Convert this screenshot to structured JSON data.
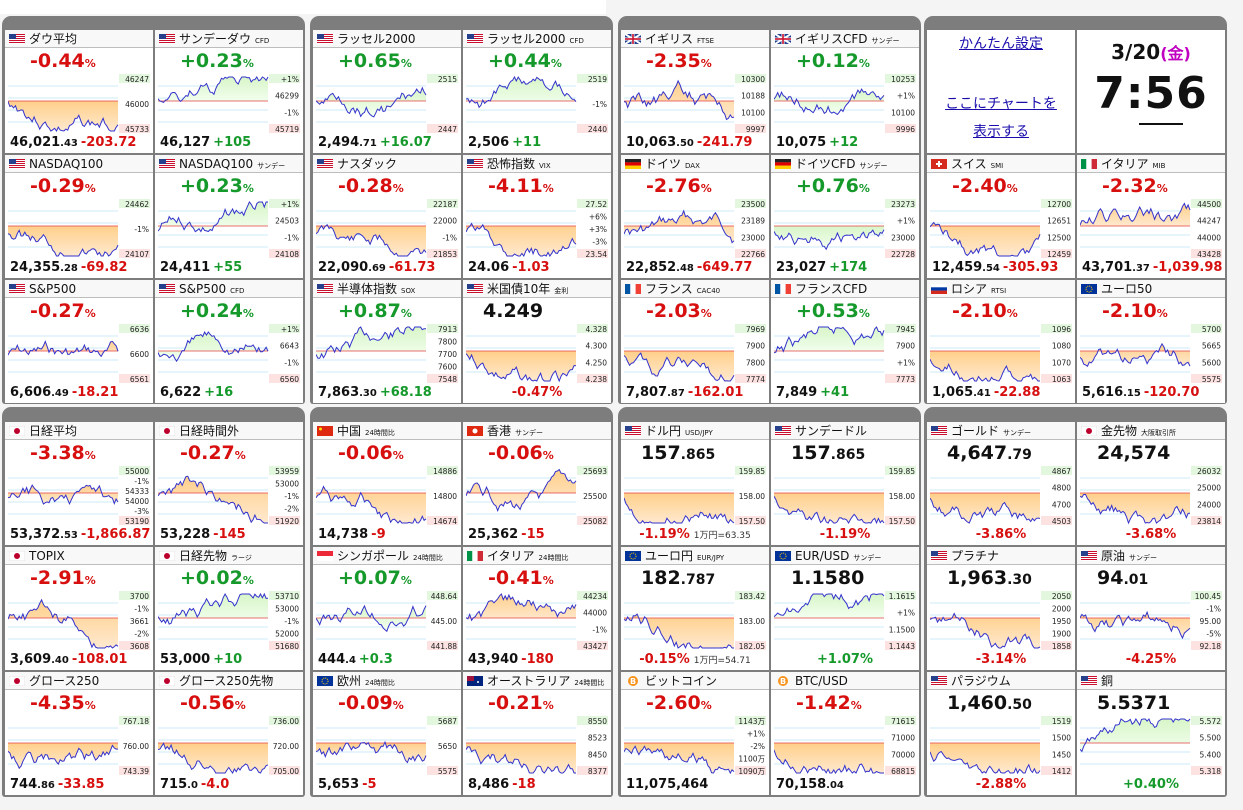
{
  "panel": {
    "settings_link": "かんたん設定",
    "chart_link_line1": "ここにチャートを",
    "chart_link_line2": "表示する",
    "date": "3/20",
    "weekday": "金",
    "time": "7:56"
  },
  "colors": {
    "up": "#15992b",
    "down": "#d70f0f",
    "group_bg": "#7d7d7d",
    "line": "#3333cc"
  },
  "tiles": [
    {
      "name": "ダウ平均",
      "sub": "",
      "flag": "us",
      "headline": "-0.44",
      "unit": "%",
      "price": "46,021",
      "price_dec": ".43",
      "change": "-203.72",
      "ticks": [
        "46247",
        "46000",
        "45733"
      ]
    },
    {
      "name": "サンデーダウ",
      "sub": "CFD",
      "flag": "us",
      "headline": "+0.23",
      "unit": "%",
      "price": "46,127",
      "price_dec": "",
      "change": "+105",
      "ticks": [
        "+1%",
        "46299",
        "-1%",
        "45719"
      ]
    },
    {
      "name": "ナスダック100",
      "sub": "",
      "flag": "us",
      "headline": "-0.29",
      "unit": "%",
      "price": "24,355",
      "price_dec": ".28",
      "change": "-69.82",
      "ticks": [
        "24462",
        "-1%",
        "24107"
      ],
      "display_name": "NASDAQ100"
    },
    {
      "name": "NASDAQ100",
      "sub": "サンデー",
      "flag": "us",
      "headline": "+0.23",
      "unit": "%",
      "price": "24,411",
      "price_dec": "",
      "change": "+55",
      "ticks": [
        "+1%",
        "24503",
        "-1%",
        "24108"
      ]
    },
    {
      "name": "S&P500",
      "sub": "",
      "flag": "us",
      "headline": "-0.27",
      "unit": "%",
      "price": "6,606",
      "price_dec": ".49",
      "change": "-18.21",
      "ticks": [
        "6636",
        "6600",
        "6561"
      ]
    },
    {
      "name": "S&P500",
      "sub": "CFD",
      "flag": "us",
      "headline": "+0.24",
      "unit": "%",
      "price": "6,622",
      "price_dec": "",
      "change": "+16",
      "ticks": [
        "+1%",
        "6643",
        "-1%",
        "6560"
      ]
    },
    {
      "name": "ラッセル2000",
      "sub": "",
      "flag": "us",
      "headline": "+0.65",
      "unit": "%",
      "price": "2,494",
      "price_dec": ".71",
      "change": "+16.07",
      "ticks": [
        "2515",
        "2447"
      ]
    },
    {
      "name": "ラッセル2000",
      "sub": "CFD",
      "flag": "us",
      "headline": "+0.44",
      "unit": "%",
      "price": "2,506",
      "price_dec": "",
      "change": "+11",
      "ticks": [
        "2519",
        "-1%",
        "2440"
      ]
    },
    {
      "name": "ナスダック",
      "sub": "",
      "flag": "us",
      "headline": "-0.28",
      "unit": "%",
      "price": "22,090",
      "price_dec": ".69",
      "change": "-61.73",
      "ticks": [
        "22187",
        "22000",
        "-1%",
        "21853"
      ]
    },
    {
      "name": "恐怖指数",
      "sub": "VIX",
      "flag": "us",
      "headline": "-4.11",
      "unit": "%",
      "price": "24.06",
      "price_dec": "",
      "change": "-1.03",
      "ticks": [
        "27.52",
        "+6%",
        "+3%",
        "-3%",
        "23.54"
      ]
    },
    {
      "name": "半導体指数",
      "sub": "SOX",
      "flag": "us",
      "headline": "+0.87",
      "unit": "%",
      "price": "7,863",
      "price_dec": ".30",
      "change": "+68.18",
      "ticks": [
        "7913",
        "7800",
        "7700",
        "7600",
        "7548"
      ]
    },
    {
      "name": "米国債10年",
      "sub": "金利",
      "flag": "us",
      "headline": "4.249",
      "unit": "",
      "price": "",
      "price_dec": "",
      "change": "-0.47%",
      "ticks": [
        "4.328",
        "4.300",
        "4.250",
        "4.238"
      ],
      "level": true
    },
    {
      "name": "イギリス",
      "sub": "FTSE",
      "flag": "uk",
      "headline": "-2.35",
      "unit": "%",
      "price": "10,063",
      "price_dec": ".50",
      "change": "-241.79",
      "ticks": [
        "10300",
        "10188",
        "10100",
        "9997"
      ]
    },
    {
      "name": "イギリスCFD",
      "sub": "サンデー",
      "flag": "uk",
      "headline": "+0.12",
      "unit": "%",
      "price": "10,075",
      "price_dec": "",
      "change": "+12",
      "ticks": [
        "10253",
        "+1%",
        "10100",
        "9996"
      ]
    },
    {
      "name": "ドイツ",
      "sub": "DAX",
      "flag": "de",
      "headline": "-2.76",
      "unit": "%",
      "price": "22,852",
      "price_dec": ".48",
      "change": "-649.77",
      "ticks": [
        "23500",
        "23189",
        "23000",
        "22766"
      ]
    },
    {
      "name": "ドイツCFD",
      "sub": "サンデー",
      "flag": "de",
      "headline": "+0.76",
      "unit": "%",
      "price": "23,027",
      "price_dec": "",
      "change": "+174",
      "ticks": [
        "23273",
        "+1%",
        "23000",
        "22728"
      ]
    },
    {
      "name": "フランス",
      "sub": "CAC40",
      "flag": "fr",
      "headline": "-2.03",
      "unit": "%",
      "price": "7,807",
      "price_dec": ".87",
      "change": "-162.01",
      "ticks": [
        "7969",
        "7900",
        "7800",
        "7774"
      ]
    },
    {
      "name": "フランスCFD",
      "sub": "",
      "flag": "fr",
      "headline": "+0.53",
      "unit": "%",
      "price": "7,849",
      "price_dec": "",
      "change": "+41",
      "ticks": [
        "7945",
        "7900",
        "+1%",
        "7773"
      ]
    },
    {
      "name": "スイス",
      "sub": "SMI",
      "flag": "ch",
      "headline": "-2.40",
      "unit": "%",
      "price": "12,459",
      "price_dec": ".54",
      "change": "-305.93",
      "ticks": [
        "12700",
        "12651",
        "12500",
        "12459"
      ]
    },
    {
      "name": "イタリア",
      "sub": "MIB",
      "flag": "it",
      "headline": "-2.32",
      "unit": "%",
      "price": "43,701",
      "price_dec": ".37",
      "change": "-1,039.98",
      "ticks": [
        "44500",
        "44247",
        "44000",
        "43428"
      ]
    },
    {
      "name": "ロシア",
      "sub": "RTSI",
      "flag": "ru",
      "headline": "-2.10",
      "unit": "%",
      "price": "1,065",
      "price_dec": ".41",
      "change": "-22.88",
      "ticks": [
        "1096",
        "1080",
        "1070",
        "1063"
      ]
    },
    {
      "name": "ユーロ50",
      "sub": "",
      "flag": "eu",
      "headline": "-2.10",
      "unit": "%",
      "price": "5,616",
      "price_dec": ".15",
      "change": "-120.70",
      "ticks": [
        "5700",
        "5665",
        "5600",
        "5575"
      ]
    },
    {
      "name": "日経平均",
      "sub": "",
      "flag": "jp",
      "headline": "-3.38",
      "unit": "%",
      "price": "53,372",
      "price_dec": ".53",
      "change": "-1,866.87",
      "ticks": [
        "55000",
        "-1%",
        "54333",
        "54000",
        "-3%",
        "53190"
      ]
    },
    {
      "name": "日経時間外",
      "sub": "",
      "flag": "jp",
      "headline": "-0.27",
      "unit": "%",
      "price": "53,228",
      "price_dec": "",
      "change": "-145",
      "ticks": [
        "53959",
        "53000",
        "-1%",
        "-2%",
        "51920"
      ]
    },
    {
      "name": "TOPIX",
      "sub": "",
      "flag": "jp",
      "headline": "-2.91",
      "unit": "%",
      "price": "3,609",
      "price_dec": ".40",
      "change": "-108.01",
      "ticks": [
        "3700",
        "-1%",
        "3661",
        "-2%",
        "3608"
      ]
    },
    {
      "name": "日経先物",
      "sub": "ラージ",
      "flag": "jp",
      "headline": "+0.02",
      "unit": "%",
      "price": "53,000",
      "price_dec": "",
      "change": "+10",
      "ticks": [
        "53710",
        "53000",
        "-1%",
        "52000",
        "51680"
      ]
    },
    {
      "name": "グロース250",
      "sub": "",
      "flag": "jp",
      "headline": "-4.35",
      "unit": "%",
      "price": "744",
      "price_dec": ".86",
      "change": "-33.85",
      "ticks": [
        "767.18",
        "760.00",
        "743.39"
      ]
    },
    {
      "name": "グロース250先物",
      "sub": "",
      "flag": "jp",
      "headline": "-0.56",
      "unit": "%",
      "price": "715",
      "price_dec": ".0",
      "change": "-4.0",
      "ticks": [
        "736.00",
        "720.00",
        "705.00"
      ]
    },
    {
      "name": "中国",
      "sub": "24時間比",
      "flag": "cn",
      "headline": "-0.06",
      "unit": "%",
      "price": "14,738",
      "price_dec": "",
      "change": "-9",
      "ticks": [
        "14886",
        "14800",
        "14674"
      ]
    },
    {
      "name": "香港",
      "sub": "サンデー",
      "flag": "hk",
      "headline": "-0.06",
      "unit": "%",
      "price": "25,362",
      "price_dec": "",
      "change": "-15",
      "ticks": [
        "25693",
        "25500",
        "25082"
      ]
    },
    {
      "name": "シンガポール",
      "sub": "24時間比",
      "flag": "sg",
      "headline": "+0.07",
      "unit": "%",
      "price": "444",
      "price_dec": ".4",
      "change": "+0.3",
      "ticks": [
        "448.64",
        "445.00",
        "441.88"
      ]
    },
    {
      "name": "イタリア",
      "sub": "24時間比",
      "flag": "it",
      "headline": "-0.41",
      "unit": "%",
      "price": "43,940",
      "price_dec": "",
      "change": "-180",
      "ticks": [
        "44234",
        "44000",
        "-1%",
        "43427"
      ]
    },
    {
      "name": "欧州",
      "sub": "24時間比",
      "flag": "eu",
      "headline": "-0.09",
      "unit": "%",
      "price": "5,653",
      "price_dec": "",
      "change": "-5",
      "ticks": [
        "5687",
        "5650",
        "5575"
      ]
    },
    {
      "name": "オーストラリア",
      "sub": "24時間比",
      "flag": "au",
      "headline": "-0.21",
      "unit": "%",
      "price": "8,486",
      "price_dec": "",
      "change": "-18",
      "ticks": [
        "8550",
        "8523",
        "8450",
        "8377"
      ]
    },
    {
      "name": "ドル円",
      "sub": "USD/JPY",
      "flag": "us",
      "headline": "157",
      "headline_dec": ".865",
      "unit": "",
      "change": "-1.19%",
      "note": "1万円=63.35",
      "ticks": [
        "159.85",
        "158.00",
        "157.50"
      ],
      "level": true
    },
    {
      "name": "サンデードル",
      "sub": "",
      "flag": "us",
      "headline": "157",
      "headline_dec": ".865",
      "unit": "",
      "change": "-1.19%",
      "note": "",
      "ticks": [
        "159.85",
        "158.00",
        "157.50"
      ],
      "level": true
    },
    {
      "name": "ユーロ円",
      "sub": "EUR/JPY",
      "flag": "eu",
      "headline": "182",
      "headline_dec": ".787",
      "unit": "",
      "change": "-0.15%",
      "note": "1万円=54.71",
      "ticks": [
        "183.42",
        "183.00",
        "182.05"
      ],
      "level": true
    },
    {
      "name": "EUR/USD",
      "sub": "サンデー",
      "flag": "eu",
      "headline": "1.1580",
      "headline_dec": "",
      "unit": "",
      "change": "+1.07%",
      "note": "",
      "ticks": [
        "1.1615",
        "+1%",
        "1.1500",
        "1.1443"
      ],
      "level": true
    },
    {
      "name": "ビットコイン",
      "sub": "",
      "flag": "btc",
      "headline": "-2.60",
      "unit": "%",
      "price": "11,075,464",
      "price_dec": "",
      "change": "",
      "ticks": [
        "1143万",
        "+1%",
        "-2%",
        "1100万",
        "1090万"
      ]
    },
    {
      "name": "BTC/USD",
      "sub": "",
      "flag": "btc",
      "headline": "-1.42",
      "unit": "%",
      "price": "70,158",
      "price_dec": ".04",
      "change": "",
      "ticks": [
        "71615",
        "71000",
        "70000",
        "68815"
      ]
    },
    {
      "name": "ゴールド",
      "sub": "サンデー",
      "flag": "us",
      "headline": "4,647",
      "headline_dec": ".79",
      "unit": "",
      "change": "-3.86%",
      "note": "",
      "ticks": [
        "4867",
        "4800",
        "4700",
        "4503"
      ],
      "level": true
    },
    {
      "name": "金先物",
      "sub": "大阪取引所",
      "flag": "jp",
      "headline": "24,574",
      "headline_dec": "",
      "unit": "",
      "change": "-3.68%",
      "note": "",
      "ticks": [
        "26032",
        "25000",
        "24000",
        "23814"
      ],
      "level": true
    },
    {
      "name": "プラチナ",
      "sub": "",
      "flag": "us",
      "headline": "1,963",
      "headline_dec": ".30",
      "unit": "",
      "change": "-3.14%",
      "note": "",
      "ticks": [
        "2050",
        "2000",
        "1950",
        "1900",
        "1858"
      ],
      "level": true
    },
    {
      "name": "原油",
      "sub": "サンデー",
      "flag": "us",
      "headline": "94",
      "headline_dec": ".01",
      "unit": "",
      "change": "-4.25%",
      "note": "",
      "ticks": [
        "100.45",
        "-1%",
        "95.00",
        "-5%",
        "92.18"
      ],
      "level": true
    },
    {
      "name": "パラジウム",
      "sub": "",
      "flag": "us",
      "headline": "1,460",
      "headline_dec": ".50",
      "unit": "",
      "change": "-2.88%",
      "note": "",
      "ticks": [
        "1519",
        "1500",
        "1450",
        "1412"
      ],
      "level": true
    },
    {
      "name": "銅",
      "sub": "",
      "flag": "us",
      "headline": "5.5371",
      "headline_dec": "",
      "unit": "",
      "change": "+0.40%",
      "note": "",
      "ticks": [
        "5.572",
        "5.500",
        "5.400",
        "5.318"
      ],
      "level": true
    }
  ]
}
